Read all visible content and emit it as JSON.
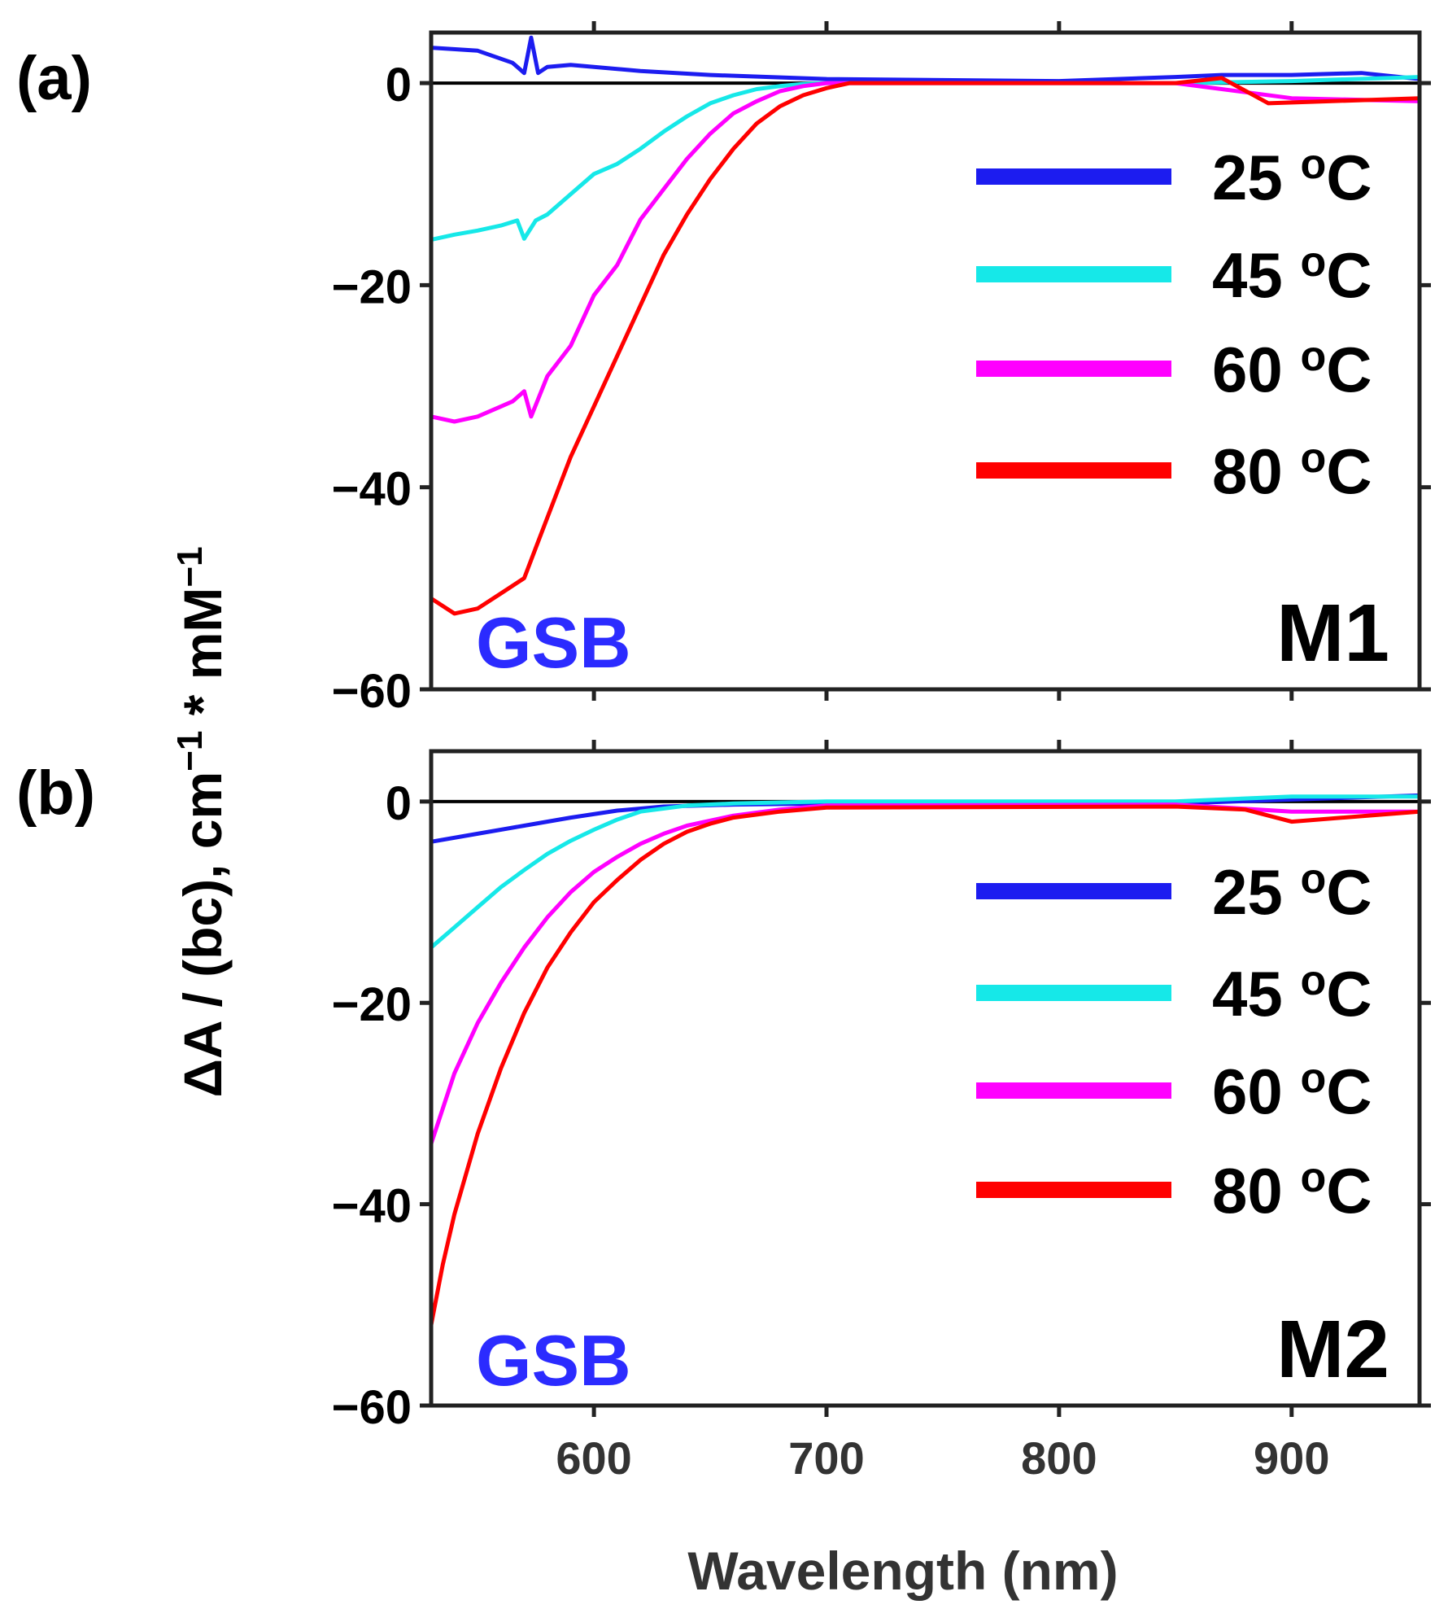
{
  "figure": {
    "ylabel_main": "ΔA / (bc), cm",
    "ylabel_sup1": "−1",
    "ylabel_mid": " * mM",
    "ylabel_sup2": "−1",
    "xlabel": "Wavelength (nm)",
    "x_ticks": [
      "600",
      "700",
      "800",
      "900"
    ],
    "y_ticks": [
      "0",
      "−20",
      "−40",
      "−60"
    ]
  },
  "chart_data": [
    {
      "type": "line",
      "panel_label": "(a)",
      "sample_label": "M1",
      "annotation": "GSB",
      "annotation_color": "#2b2bff",
      "xlim": [
        530,
        955
      ],
      "ylim": [
        -60,
        5
      ],
      "x_ticks": [
        600,
        700,
        800,
        900
      ],
      "y_ticks": [
        0,
        -20,
        -40,
        -60
      ],
      "zero_line": true,
      "legend_position": "upper-right",
      "series": [
        {
          "name": "25 °C",
          "temp": "25",
          "unit": "oC",
          "color": "#1c1cf0",
          "x": [
            530,
            550,
            565,
            570,
            573,
            576,
            580,
            590,
            600,
            620,
            650,
            700,
            800,
            850,
            870,
            900,
            930,
            955
          ],
          "y": [
            3.5,
            3.2,
            2.0,
            1.0,
            4.5,
            1.0,
            1.6,
            1.8,
            1.6,
            1.2,
            0.8,
            0.4,
            0.2,
            0.6,
            0.8,
            0.8,
            1.0,
            0.4
          ]
        },
        {
          "name": "45 °C",
          "temp": "45",
          "unit": "oC",
          "color": "#16e8e8",
          "x": [
            530,
            540,
            550,
            560,
            567,
            570,
            575,
            580,
            590,
            600,
            610,
            620,
            630,
            640,
            650,
            660,
            670,
            680,
            690,
            700,
            850,
            900,
            955
          ],
          "y": [
            -15.5,
            -15,
            -14.6,
            -14.1,
            -13.6,
            -15.4,
            -13.6,
            -13,
            -11,
            -9,
            -8,
            -6.5,
            -4.8,
            -3.3,
            -2,
            -1.2,
            -0.6,
            -0.3,
            -0.1,
            0,
            0,
            0.2,
            0.6
          ]
        },
        {
          "name": "60 °C",
          "temp": "60",
          "unit": "oC",
          "color": "#ff00ff",
          "x": [
            530,
            540,
            550,
            560,
            565,
            570,
            573,
            580,
            590,
            600,
            610,
            620,
            630,
            640,
            650,
            660,
            670,
            680,
            690,
            700,
            850,
            900,
            955
          ],
          "y": [
            -33,
            -33.5,
            -33,
            -32,
            -31.5,
            -30.5,
            -33,
            -29,
            -26,
            -21,
            -18,
            -13.5,
            -10.5,
            -7.5,
            -5,
            -3,
            -1.8,
            -0.8,
            -0.3,
            0,
            0,
            -1.5,
            -1.8
          ]
        },
        {
          "name": "80 °C",
          "temp": "80",
          "unit": "oC",
          "color": "#ff0000",
          "x": [
            530,
            540,
            550,
            560,
            570,
            575,
            580,
            590,
            600,
            610,
            620,
            630,
            640,
            650,
            660,
            670,
            680,
            690,
            700,
            710,
            850,
            870,
            890,
            955
          ],
          "y": [
            -51,
            -52.5,
            -52,
            -50.5,
            -49,
            -46,
            -43,
            -37,
            -32,
            -27,
            -22,
            -17,
            -13,
            -9.5,
            -6.5,
            -4,
            -2.3,
            -1.2,
            -0.5,
            0,
            0,
            0.5,
            -2,
            -1.5
          ]
        }
      ]
    },
    {
      "type": "line",
      "panel_label": "(b)",
      "sample_label": "M2",
      "annotation": "GSB",
      "annotation_color": "#2b2bff",
      "xlim": [
        530,
        955
      ],
      "ylim": [
        -60,
        5
      ],
      "x_ticks": [
        600,
        700,
        800,
        900
      ],
      "y_ticks": [
        0,
        -20,
        -40,
        -60
      ],
      "zero_line": true,
      "legend_position": "upper-right",
      "series": [
        {
          "name": "25 °C",
          "temp": "25",
          "unit": "oC",
          "color": "#1c1cf0",
          "x": [
            530,
            550,
            570,
            590,
            610,
            630,
            660,
            700,
            850,
            900,
            955
          ],
          "y": [
            -4,
            -3.2,
            -2.4,
            -1.6,
            -0.9,
            -0.5,
            -0.3,
            -0.2,
            -0.2,
            0.2,
            0.6
          ]
        },
        {
          "name": "45 °C",
          "temp": "45",
          "unit": "oC",
          "color": "#16e8e8",
          "x": [
            530,
            540,
            550,
            560,
            570,
            580,
            590,
            600,
            610,
            620,
            640,
            660,
            700,
            850,
            900,
            955
          ],
          "y": [
            -14.5,
            -12.5,
            -10.5,
            -8.5,
            -6.8,
            -5.2,
            -3.9,
            -2.8,
            -1.8,
            -1,
            -0.4,
            -0.2,
            0,
            0,
            0.5,
            0.5
          ]
        },
        {
          "name": "60 °C",
          "temp": "60",
          "unit": "oC",
          "color": "#ff00ff",
          "x": [
            530,
            540,
            550,
            560,
            570,
            580,
            590,
            600,
            610,
            620,
            630,
            640,
            660,
            680,
            700,
            850,
            900,
            955
          ],
          "y": [
            -34,
            -27,
            -22,
            -18,
            -14.5,
            -11.5,
            -9,
            -7,
            -5.5,
            -4.2,
            -3.2,
            -2.4,
            -1.4,
            -0.8,
            -0.4,
            -0.3,
            -1,
            -1
          ]
        },
        {
          "name": "80 °C",
          "temp": "80",
          "unit": "oC",
          "color": "#ff0000",
          "x": [
            530,
            535,
            540,
            550,
            560,
            570,
            580,
            590,
            600,
            610,
            620,
            630,
            640,
            650,
            660,
            680,
            700,
            850,
            880,
            900,
            955
          ],
          "y": [
            -52,
            -46,
            -41,
            -33,
            -26.5,
            -21,
            -16.5,
            -13,
            -10,
            -7.8,
            -5.8,
            -4.2,
            -3,
            -2.2,
            -1.6,
            -1,
            -0.6,
            -0.5,
            -0.8,
            -2,
            -1
          ]
        }
      ]
    }
  ]
}
